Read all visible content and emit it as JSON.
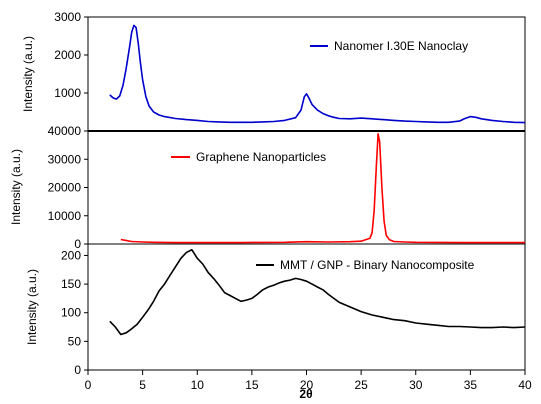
{
  "chart_data": {
    "type": "line",
    "xlabel": "2θ",
    "xlim": [
      0,
      40
    ],
    "x_ticks": [
      "0",
      "5",
      "10",
      "15",
      "20",
      "25",
      "30",
      "35",
      "40"
    ],
    "grid": false,
    "panels": [
      {
        "ylabel": "Intensity (a.u.)",
        "ylim": [
          0,
          3000
        ],
        "y_ticks": [
          "1000",
          "2000",
          "3000"
        ],
        "legend_position": "top-right",
        "series": [
          {
            "name": "Nanomer I.30E  Nanoclay",
            "color": "#0000cc",
            "x": [
              2.0,
              2.3,
              2.6,
              2.9,
              3.2,
              3.5,
              3.8,
              4.0,
              4.2,
              4.4,
              4.6,
              4.8,
              5.0,
              5.3,
              5.6,
              6.0,
              6.5,
              7.0,
              8.0,
              9.0,
              10.0,
              11.0,
              12.0,
              13.0,
              14.0,
              15.0,
              16.0,
              17.0,
              18.0,
              19.0,
              19.5,
              19.8,
              20.0,
              20.2,
              20.5,
              21.0,
              21.5,
              22.0,
              22.5,
              23.0,
              24.0,
              25.0,
              26.0,
              27.0,
              28.0,
              29.0,
              30.0,
              31.0,
              32.0,
              33.0,
              34.0,
              34.5,
              35.0,
              35.5,
              36.0,
              37.0,
              38.0,
              39.0,
              40.0
            ],
            "y": [
              950,
              870,
              840,
              920,
              1200,
              1650,
              2200,
              2600,
              2780,
              2720,
              2300,
              1800,
              1350,
              900,
              650,
              500,
              420,
              380,
              330,
              300,
              280,
              250,
              240,
              230,
              230,
              230,
              240,
              250,
              280,
              350,
              550,
              900,
              980,
              880,
              700,
              550,
              460,
              400,
              360,
              330,
              320,
              340,
              320,
              300,
              280,
              260,
              250,
              240,
              230,
              230,
              260,
              330,
              380,
              360,
              320,
              280,
              250,
              230,
              220
            ]
          }
        ]
      },
      {
        "ylabel": "Intensity (a.u.)",
        "ylim": [
          0,
          40000
        ],
        "y_ticks": [
          "0",
          "10000",
          "20000",
          "30000",
          "40000"
        ],
        "legend_position": "top-center",
        "series": [
          {
            "name": "Graphene Nanoparticles",
            "color": "#ff0000",
            "x": [
              3.0,
              4.0,
              5.0,
              6.0,
              8.0,
              10.0,
              12.0,
              14.0,
              16.0,
              18.0,
              20.0,
              22.0,
              24.0,
              25.0,
              25.8,
              26.0,
              26.2,
              26.4,
              26.55,
              26.7,
              26.9,
              27.1,
              27.3,
              27.6,
              28.0,
              29.0,
              30.0,
              32.0,
              34.0,
              36.0,
              38.0,
              40.0
            ],
            "y": [
              1600,
              900,
              700,
              600,
              500,
              500,
              500,
              500,
              550,
              600,
              800,
              700,
              800,
              1000,
              2000,
              4000,
              12000,
              28000,
              39000,
              36000,
              20000,
              8000,
              3000,
              1500,
              900,
              700,
              600,
              550,
              500,
              500,
              500,
              500
            ]
          }
        ]
      },
      {
        "ylabel": "Intensity (a.u.)",
        "ylim": [
          0,
          220
        ],
        "y_ticks": [
          "0",
          "50",
          "100",
          "150",
          "200"
        ],
        "legend_position": "top-right",
        "series": [
          {
            "name": "MMT / GNP - Binary Nanocomposite",
            "color": "#000000",
            "x": [
              2.0,
              2.5,
              3.0,
              3.5,
              4.0,
              4.5,
              5.0,
              5.5,
              6.0,
              6.5,
              7.0,
              7.5,
              8.0,
              8.5,
              9.0,
              9.5,
              10.0,
              10.5,
              11.0,
              11.5,
              12.0,
              12.5,
              13.0,
              13.5,
              14.0,
              14.5,
              15.0,
              15.5,
              16.0,
              16.5,
              17.0,
              17.5,
              18.0,
              18.5,
              19.0,
              19.5,
              20.0,
              20.5,
              21.0,
              21.5,
              22.0,
              22.5,
              23.0,
              24.0,
              25.0,
              26.0,
              27.0,
              28.0,
              29.0,
              30.0,
              31.0,
              32.0,
              33.0,
              34.0,
              35.0,
              36.0,
              37.0,
              38.0,
              39.0,
              40.0
            ],
            "y": [
              85,
              75,
              62,
              65,
              72,
              80,
              92,
              105,
              120,
              138,
              150,
              165,
              180,
              195,
              205,
              210,
              195,
              185,
              170,
              160,
              148,
              135,
              130,
              125,
              120,
              122,
              125,
              132,
              140,
              145,
              148,
              152,
              155,
              157,
              160,
              158,
              155,
              150,
              145,
              140,
              132,
              125,
              118,
              110,
              102,
              96,
              92,
              88,
              86,
              82,
              80,
              78,
              76,
              76,
              75,
              74,
              74,
              75,
              74,
              75
            ]
          }
        ]
      }
    ]
  }
}
